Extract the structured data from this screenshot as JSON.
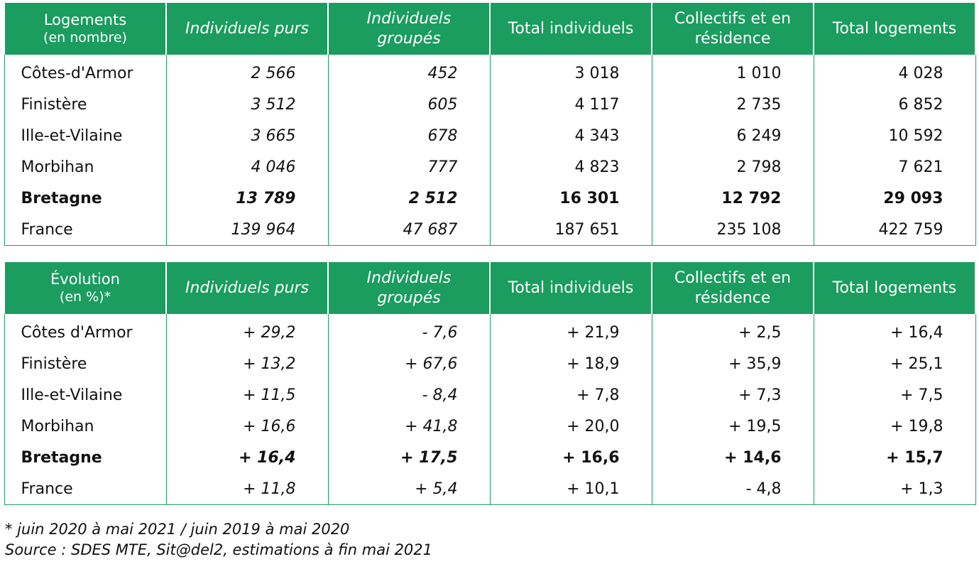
{
  "table1": {
    "header": {
      "first_line1": "Logements",
      "first_line2": "(en nombre)",
      "columns": [
        {
          "line1": "Individuels purs",
          "line2": ""
        },
        {
          "line1": "Individuels",
          "line2": "groupés"
        },
        {
          "line1": "Total individuels",
          "line2": ""
        },
        {
          "line1": "Collectifs et en",
          "line2": "résidence"
        },
        {
          "line1": "Total logements",
          "line2": ""
        }
      ]
    },
    "rows": [
      {
        "name": "Côtes-d'Armor",
        "values": [
          "2 566",
          "452",
          "3 018",
          "1 010",
          "4 028"
        ]
      },
      {
        "name": "Finistère",
        "values": [
          "3 512",
          "605",
          "4 117",
          "2 735",
          "6 852"
        ]
      },
      {
        "name": "Ille-et-Vilaine",
        "values": [
          "3 665",
          "678",
          "4 343",
          "6 249",
          "10 592"
        ]
      },
      {
        "name": "Morbihan",
        "values": [
          "4 046",
          "777",
          "4 823",
          "2 798",
          "7 621"
        ]
      },
      {
        "name": "Bretagne",
        "values": [
          "13 789",
          "2 512",
          "16 301",
          "12 792",
          "29 093"
        ]
      },
      {
        "name": "France",
        "values": [
          "139 964",
          "47 687",
          "187 651",
          "235 108",
          "422 759"
        ]
      }
    ]
  },
  "table2": {
    "header": {
      "first_line1": "Évolution",
      "first_line2": "(en %)*",
      "columns": [
        {
          "line1": "Individuels purs",
          "line2": ""
        },
        {
          "line1": "Individuels",
          "line2": "groupés"
        },
        {
          "line1": "Total individuels",
          "line2": ""
        },
        {
          "line1": "Collectifs et en",
          "line2": "résidence"
        },
        {
          "line1": "Total logements",
          "line2": ""
        }
      ]
    },
    "rows": [
      {
        "name": "Côtes d'Armor",
        "values": [
          "+ 29,2",
          "- 7,6",
          "+ 21,9",
          "+ 2,5",
          "+ 16,4"
        ]
      },
      {
        "name": "Finistère",
        "values": [
          "+ 13,2",
          "+ 67,6",
          "+ 18,9",
          "+ 35,9",
          "+ 25,1"
        ]
      },
      {
        "name": "Ille-et-Vilaine",
        "values": [
          "+ 11,5",
          "- 8,4",
          "+ 7,8",
          "+ 7,3",
          "+ 7,5"
        ]
      },
      {
        "name": "Morbihan",
        "values": [
          "+ 16,6",
          "+ 41,8",
          "+ 20,0",
          "+ 19,5",
          "+ 19,8"
        ]
      },
      {
        "name": "Bretagne",
        "values": [
          "+ 16,4",
          "+ 17,5",
          "+ 16,6",
          "+ 14,6",
          "+ 15,7"
        ]
      },
      {
        "name": "France",
        "values": [
          "+ 11,8",
          "+ 5,4",
          "+ 10,1",
          "- 4,8",
          "+ 1,3"
        ]
      }
    ]
  },
  "footnote": "* juin 2020 à mai 2021 / juin 2019 à mai 2020",
  "source": "Source : SDES MTE, Sit@del2, estimations à fin mai 2021",
  "colors": {
    "header_green": "#1a9d5f",
    "header_text": "#ffffff"
  }
}
